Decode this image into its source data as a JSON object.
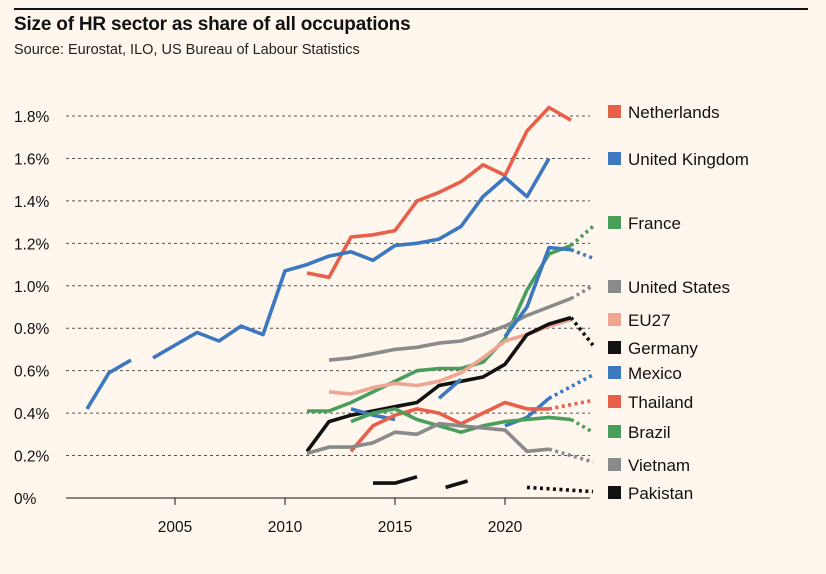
{
  "title": "Size of HR sector as share of all occupations",
  "subtitle": "Source: Eurostat, ILO, US Bureau of Labour Statistics",
  "chart_data": {
    "type": "line",
    "title": "Size of HR sector as share of all occupations",
    "xlabel": "",
    "ylabel": "",
    "xlim": [
      2000,
      2024
    ],
    "ylim": [
      0,
      1.8
    ],
    "xticks": [
      2005,
      2010,
      2015,
      2020
    ],
    "yticks": [
      0,
      0.2,
      0.4,
      0.6,
      0.8,
      1.0,
      1.2,
      1.4,
      1.6,
      1.8
    ],
    "ytick_labels": [
      "0%",
      "0.2%",
      "0.4%",
      "0.6%",
      "0.8%",
      "1.0%",
      "1.2%",
      "1.4%",
      "1.6%",
      "1.8%"
    ],
    "series": [
      {
        "name": "Netherlands",
        "color": "#e8604c",
        "segments": [
          [
            [
              2011,
              1.06
            ],
            [
              2012,
              1.04
            ],
            [
              2013,
              1.23
            ],
            [
              2014,
              1.24
            ],
            [
              2015,
              1.26
            ],
            [
              2016,
              1.4
            ],
            [
              2017,
              1.44
            ],
            [
              2018,
              1.49
            ],
            [
              2019,
              1.57
            ],
            [
              2020,
              1.52
            ],
            [
              2021,
              1.73
            ],
            [
              2022,
              1.84
            ],
            [
              2023,
              1.78
            ]
          ]
        ],
        "dotted": []
      },
      {
        "name": "United Kingdom",
        "color": "#3c78c0",
        "segments": [
          [
            [
              2001,
              0.42
            ],
            [
              2002,
              0.59
            ],
            [
              2003,
              0.65
            ]
          ],
          [
            [
              2004,
              0.66
            ],
            [
              2005,
              0.72
            ],
            [
              2006,
              0.78
            ],
            [
              2007,
              0.74
            ],
            [
              2008,
              0.81
            ],
            [
              2009,
              0.77
            ],
            [
              2010,
              1.07
            ],
            [
              2011,
              1.1
            ],
            [
              2012,
              1.14
            ],
            [
              2013,
              1.16
            ],
            [
              2014,
              1.12
            ],
            [
              2015,
              1.19
            ],
            [
              2016,
              1.2
            ],
            [
              2017,
              1.22
            ],
            [
              2018,
              1.28
            ],
            [
              2019,
              1.42
            ],
            [
              2020,
              1.51
            ],
            [
              2021,
              1.42
            ],
            [
              2022,
              1.6
            ]
          ]
        ],
        "dotted": []
      },
      {
        "name": "France",
        "color": "#4a9e5c",
        "segments": [
          [
            [
              2011,
              0.41
            ],
            [
              2012,
              0.41
            ],
            [
              2013,
              0.45
            ],
            [
              2014,
              0.5
            ],
            [
              2015,
              0.55
            ],
            [
              2016,
              0.6
            ],
            [
              2017,
              0.61
            ],
            [
              2018,
              0.61
            ],
            [
              2019,
              0.64
            ],
            [
              2020,
              0.75
            ],
            [
              2021,
              0.98
            ],
            [
              2022,
              1.15
            ],
            [
              2023,
              1.19
            ]
          ]
        ],
        "dotted": [
          [
            2023,
            1.19
          ],
          [
            2024,
            1.28
          ]
        ]
      },
      {
        "name": "United States",
        "color": "#8a8a8a",
        "segments": [
          [
            [
              2012,
              0.65
            ],
            [
              2013,
              0.66
            ],
            [
              2014,
              0.68
            ],
            [
              2015,
              0.7
            ],
            [
              2016,
              0.71
            ],
            [
              2017,
              0.73
            ],
            [
              2018,
              0.74
            ],
            [
              2019,
              0.77
            ],
            [
              2020,
              0.81
            ],
            [
              2021,
              0.86
            ],
            [
              2022,
              0.9
            ],
            [
              2023,
              0.94
            ]
          ]
        ],
        "dotted": [
          [
            2023,
            0.94
          ],
          [
            2024,
            1.0
          ]
        ]
      },
      {
        "name": "EU27",
        "color": "#f0a492",
        "segments": [
          [
            [
              2012,
              0.5
            ],
            [
              2013,
              0.49
            ],
            [
              2014,
              0.52
            ],
            [
              2015,
              0.54
            ],
            [
              2016,
              0.53
            ],
            [
              2017,
              0.55
            ],
            [
              2018,
              0.59
            ],
            [
              2019,
              0.66
            ],
            [
              2020,
              0.74
            ],
            [
              2021,
              0.77
            ],
            [
              2022,
              0.81
            ],
            [
              2023,
              0.84
            ]
          ]
        ],
        "dotted": []
      },
      {
        "name": "Germany",
        "color": "#111111",
        "segments": [
          [
            [
              2011,
              0.22
            ],
            [
              2012,
              0.36
            ],
            [
              2013,
              0.39
            ],
            [
              2014,
              0.41
            ],
            [
              2015,
              0.43
            ],
            [
              2016,
              0.45
            ],
            [
              2017,
              0.53
            ],
            [
              2018,
              0.55
            ],
            [
              2019,
              0.57
            ],
            [
              2020,
              0.63
            ],
            [
              2021,
              0.77
            ],
            [
              2022,
              0.82
            ],
            [
              2023,
              0.85
            ]
          ]
        ],
        "dotted": [
          [
            2023,
            0.85
          ],
          [
            2024,
            0.72
          ]
        ]
      },
      {
        "name": "Mexico",
        "color": "#3c78c0",
        "segments": [
          [
            [
              2013,
              0.42
            ],
            [
              2014,
              0.39
            ],
            [
              2015,
              0.37
            ]
          ],
          [
            [
              2017,
              0.47
            ],
            [
              2018,
              0.56
            ]
          ],
          [
            [
              2020,
              0.34
            ],
            [
              2021,
              0.38
            ],
            [
              2022,
              0.47
            ]
          ]
        ],
        "dotted": [
          [
            2022,
            0.47
          ],
          [
            2024,
            0.58
          ]
        ]
      },
      {
        "name": "Mexico upper",
        "color": "#3c78c0",
        "legend": false,
        "segments": [
          [
            [
              2020,
              0.76
            ],
            [
              2021,
              0.9
            ],
            [
              2022,
              1.18
            ],
            [
              2023,
              1.17
            ]
          ]
        ],
        "dotted": [
          [
            2023,
            1.17
          ],
          [
            2024,
            1.13
          ]
        ]
      },
      {
        "name": "Thailand",
        "color": "#e8604c",
        "segments": [
          [
            [
              2013,
              0.22
            ],
            [
              2014,
              0.34
            ],
            [
              2015,
              0.39
            ],
            [
              2016,
              0.42
            ],
            [
              2017,
              0.4
            ],
            [
              2018,
              0.35
            ],
            [
              2019,
              0.4
            ],
            [
              2020,
              0.45
            ],
            [
              2021,
              0.42
            ],
            [
              2022,
              0.42
            ]
          ]
        ],
        "dotted": [
          [
            2022,
            0.42
          ],
          [
            2024,
            0.46
          ]
        ]
      },
      {
        "name": "Brazil",
        "color": "#4a9e5c",
        "segments": [
          [
            [
              2013,
              0.36
            ],
            [
              2014,
              0.4
            ],
            [
              2015,
              0.42
            ],
            [
              2016,
              0.37
            ],
            [
              2017,
              0.34
            ],
            [
              2018,
              0.31
            ],
            [
              2019,
              0.34
            ],
            [
              2020,
              0.36
            ],
            [
              2021,
              0.37
            ],
            [
              2022,
              0.38
            ],
            [
              2023,
              0.37
            ]
          ]
        ],
        "dotted": [
          [
            2023,
            0.37
          ],
          [
            2024,
            0.31
          ]
        ]
      },
      {
        "name": "Vietnam",
        "color": "#8a8a8a",
        "segments": [
          [
            [
              2011,
              0.21
            ],
            [
              2012,
              0.24
            ],
            [
              2013,
              0.24
            ],
            [
              2014,
              0.26
            ],
            [
              2015,
              0.31
            ],
            [
              2016,
              0.3
            ],
            [
              2017,
              0.35
            ],
            [
              2018,
              0.34
            ],
            [
              2019,
              0.33
            ],
            [
              2020,
              0.32
            ],
            [
              2021,
              0.22
            ],
            [
              2022,
              0.23
            ]
          ]
        ],
        "dotted": [
          [
            2022,
            0.23
          ],
          [
            2024,
            0.17
          ]
        ]
      },
      {
        "name": "Pakistan",
        "color": "#111111",
        "segments": [
          [
            [
              2014,
              0.07
            ],
            [
              2015,
              0.07
            ],
            [
              2016,
              0.1
            ]
          ],
          [
            [
              2017.3,
              0.05
            ],
            [
              2018.3,
              0.08
            ]
          ]
        ],
        "dotted": [
          [
            2021,
            0.05
          ],
          [
            2024,
            0.03
          ]
        ]
      }
    ],
    "legend": [
      {
        "label": "Netherlands",
        "color": "#e8604c"
      },
      {
        "label": "United Kingdom",
        "color": "#3c78c0"
      },
      {
        "label": "France",
        "color": "#4a9e5c"
      },
      {
        "label": "United States",
        "color": "#8a8a8a"
      },
      {
        "label": "EU27",
        "color": "#f0a492"
      },
      {
        "label": "Germany",
        "color": "#111111"
      },
      {
        "label": "Mexico",
        "color": "#3c78c0"
      },
      {
        "label": "Thailand",
        "color": "#e8604c"
      },
      {
        "label": "Brazil",
        "color": "#4a9e5c"
      },
      {
        "label": "Vietnam",
        "color": "#8a8a8a"
      },
      {
        "label": "Pakistan",
        "color": "#111111"
      }
    ]
  }
}
